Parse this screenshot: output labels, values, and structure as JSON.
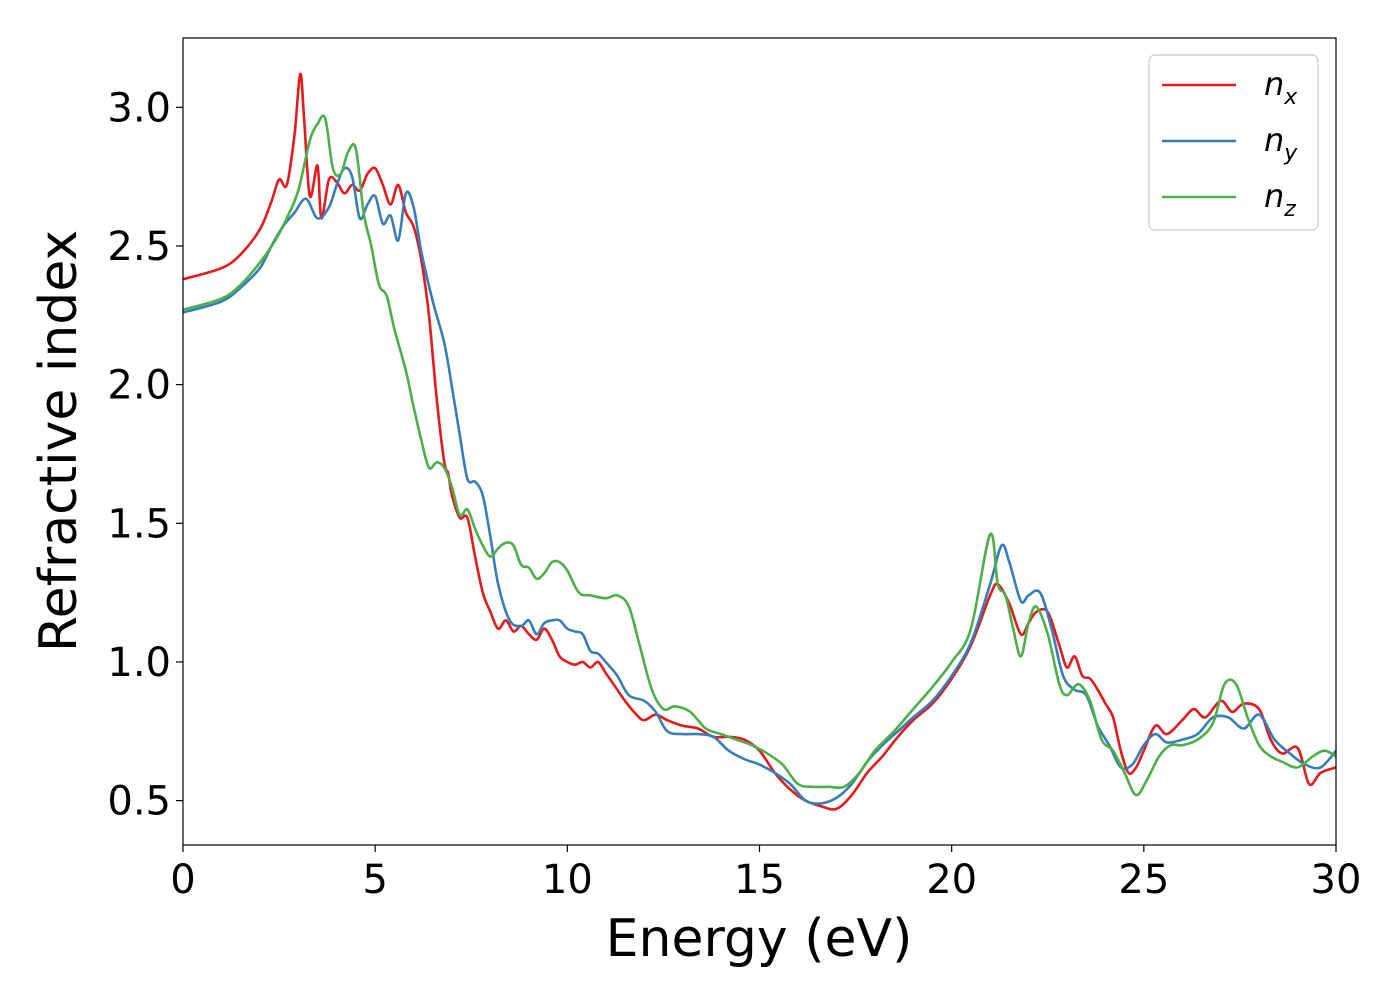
{
  "chart_data": {
    "type": "line",
    "xlabel": "Energy (eV)",
    "ylabel": "Refractive index",
    "xlim": [
      0,
      30
    ],
    "ylim": [
      0.34,
      3.25
    ],
    "xticks": [
      0,
      5,
      10,
      15,
      20,
      25,
      30
    ],
    "xtick_labels": [
      "0",
      "5",
      "10",
      "15",
      "20",
      "25",
      "30"
    ],
    "yticks": [
      0.5,
      1.0,
      1.5,
      2.0,
      2.5,
      3.0
    ],
    "ytick_labels": [
      "0.5",
      "1.0",
      "1.5",
      "2.0",
      "2.5",
      "3.0"
    ],
    "grid": false,
    "legend_position": "top-right",
    "series": [
      {
        "name": "n",
        "subscript": "x",
        "color": "#e41a1c",
        "x": [
          0,
          1,
          1.5,
          2,
          2.3,
          2.5,
          2.7,
          2.9,
          3.05,
          3.15,
          3.3,
          3.5,
          3.6,
          3.8,
          4.0,
          4.2,
          4.4,
          4.6,
          4.8,
          5.0,
          5.2,
          5.4,
          5.6,
          5.8,
          6.0,
          6.2,
          6.4,
          6.6,
          6.8,
          6.9,
          7.0,
          7.2,
          7.4,
          7.6,
          7.8,
          8.0,
          8.2,
          8.4,
          8.6,
          8.8,
          9.0,
          9.2,
          9.4,
          9.6,
          9.8,
          10.0,
          10.2,
          10.4,
          10.6,
          10.8,
          11.0,
          11.2,
          11.5,
          11.8,
          12.0,
          12.3,
          12.6,
          13.0,
          13.4,
          13.8,
          14.2,
          14.6,
          15.0,
          15.4,
          15.8,
          16.2,
          16.6,
          17.0,
          17.4,
          17.8,
          18.2,
          18.6,
          19.0,
          19.5,
          20.0,
          20.5,
          21.0,
          21.2,
          21.5,
          21.8,
          22.0,
          22.2,
          22.5,
          22.8,
          23.0,
          23.2,
          23.4,
          23.6,
          23.8,
          24.0,
          24.2,
          24.4,
          24.6,
          24.8,
          25.0,
          25.3,
          25.6,
          26.0,
          26.3,
          26.6,
          27.0,
          27.3,
          27.6,
          28.0,
          28.3,
          28.6,
          29.0,
          29.3,
          29.6,
          30.0
        ],
        "y": [
          2.38,
          2.42,
          2.47,
          2.56,
          2.66,
          2.74,
          2.72,
          2.9,
          3.12,
          2.96,
          2.68,
          2.79,
          2.6,
          2.74,
          2.73,
          2.69,
          2.72,
          2.7,
          2.76,
          2.78,
          2.72,
          2.65,
          2.72,
          2.62,
          2.57,
          2.45,
          2.25,
          1.95,
          1.72,
          1.68,
          1.6,
          1.52,
          1.52,
          1.38,
          1.25,
          1.18,
          1.12,
          1.15,
          1.11,
          1.13,
          1.1,
          1.08,
          1.12,
          1.08,
          1.02,
          1.0,
          0.99,
          1.0,
          0.98,
          1.0,
          0.96,
          0.92,
          0.86,
          0.81,
          0.79,
          0.81,
          0.79,
          0.77,
          0.76,
          0.73,
          0.73,
          0.72,
          0.68,
          0.6,
          0.54,
          0.5,
          0.48,
          0.47,
          0.52,
          0.6,
          0.66,
          0.73,
          0.79,
          0.85,
          0.94,
          1.06,
          1.24,
          1.28,
          1.21,
          1.1,
          1.14,
          1.18,
          1.18,
          1.06,
          0.98,
          1.02,
          0.95,
          0.94,
          0.9,
          0.85,
          0.8,
          0.68,
          0.6,
          0.62,
          0.68,
          0.77,
          0.74,
          0.79,
          0.83,
          0.8,
          0.86,
          0.82,
          0.85,
          0.83,
          0.72,
          0.67,
          0.69,
          0.56,
          0.6,
          0.62
        ]
      },
      {
        "name": "n",
        "subscript": "y",
        "color": "#377eb8",
        "x": [
          0,
          1,
          1.5,
          2,
          2.3,
          2.6,
          2.9,
          3.2,
          3.5,
          3.8,
          4.0,
          4.2,
          4.4,
          4.6,
          4.8,
          5.0,
          5.2,
          5.4,
          5.6,
          5.8,
          6.0,
          6.2,
          6.5,
          6.8,
          7.0,
          7.2,
          7.4,
          7.6,
          7.8,
          8.0,
          8.2,
          8.5,
          8.8,
          9.0,
          9.2,
          9.4,
          9.6,
          9.8,
          10.0,
          10.2,
          10.4,
          10.6,
          10.8,
          11.0,
          11.3,
          11.6,
          12.0,
          12.3,
          12.6,
          13.0,
          13.4,
          13.8,
          14.2,
          14.6,
          15.0,
          15.4,
          15.8,
          16.2,
          16.6,
          17.0,
          17.4,
          17.8,
          18.2,
          18.6,
          19.0,
          19.5,
          20.0,
          20.5,
          21.0,
          21.3,
          21.5,
          21.8,
          22.0,
          22.3,
          22.6,
          22.9,
          23.2,
          23.5,
          23.8,
          24.1,
          24.4,
          24.7,
          25.0,
          25.3,
          25.6,
          26.0,
          26.4,
          26.8,
          27.2,
          27.6,
          28.0,
          28.4,
          28.8,
          29.2,
          29.6,
          30.0
        ],
        "y": [
          2.26,
          2.3,
          2.35,
          2.42,
          2.5,
          2.57,
          2.62,
          2.67,
          2.6,
          2.64,
          2.72,
          2.78,
          2.75,
          2.6,
          2.65,
          2.68,
          2.58,
          2.61,
          2.52,
          2.69,
          2.64,
          2.48,
          2.3,
          2.15,
          1.99,
          1.82,
          1.66,
          1.65,
          1.6,
          1.45,
          1.28,
          1.15,
          1.13,
          1.15,
          1.1,
          1.14,
          1.15,
          1.15,
          1.12,
          1.11,
          1.1,
          1.04,
          1.03,
          1.0,
          0.95,
          0.88,
          0.86,
          0.82,
          0.75,
          0.74,
          0.74,
          0.73,
          0.68,
          0.65,
          0.63,
          0.6,
          0.56,
          0.5,
          0.49,
          0.51,
          0.56,
          0.64,
          0.7,
          0.75,
          0.8,
          0.86,
          0.95,
          1.07,
          1.28,
          1.42,
          1.36,
          1.22,
          1.24,
          1.25,
          1.12,
          0.95,
          0.9,
          0.88,
          0.77,
          0.7,
          0.62,
          0.63,
          0.7,
          0.74,
          0.71,
          0.72,
          0.74,
          0.8,
          0.8,
          0.76,
          0.81,
          0.72,
          0.67,
          0.63,
          0.62,
          0.68
        ]
      },
      {
        "name": "n",
        "subscript": "z",
        "color": "#4daf4a",
        "x": [
          0,
          1,
          1.5,
          2,
          2.4,
          2.7,
          3.0,
          3.3,
          3.5,
          3.7,
          3.9,
          4.1,
          4.3,
          4.5,
          4.7,
          4.9,
          5.1,
          5.3,
          5.5,
          5.8,
          6.0,
          6.2,
          6.4,
          6.6,
          6.8,
          7.0,
          7.2,
          7.4,
          7.6,
          7.8,
          8.0,
          8.2,
          8.4,
          8.6,
          8.8,
          9.0,
          9.2,
          9.4,
          9.6,
          9.8,
          10.0,
          10.3,
          10.6,
          11.0,
          11.3,
          11.6,
          11.9,
          12.2,
          12.5,
          12.8,
          13.2,
          13.6,
          14.0,
          14.4,
          14.8,
          15.2,
          15.6,
          16.0,
          16.4,
          16.8,
          17.2,
          17.6,
          18.0,
          18.5,
          19.0,
          19.5,
          20.0,
          20.5,
          21.0,
          21.2,
          21.4,
          21.6,
          21.8,
          22.0,
          22.2,
          22.5,
          22.8,
          23.0,
          23.3,
          23.6,
          23.9,
          24.2,
          24.5,
          24.8,
          25.1,
          25.4,
          25.7,
          26.0,
          26.4,
          26.8,
          27.1,
          27.4,
          27.7,
          28.0,
          28.3,
          28.6,
          29.0,
          29.4,
          29.7,
          30.0
        ],
        "y": [
          2.27,
          2.31,
          2.36,
          2.44,
          2.52,
          2.6,
          2.7,
          2.88,
          2.94,
          2.96,
          2.78,
          2.76,
          2.84,
          2.85,
          2.62,
          2.5,
          2.36,
          2.32,
          2.2,
          2.05,
          1.92,
          1.8,
          1.7,
          1.72,
          1.7,
          1.63,
          1.53,
          1.55,
          1.48,
          1.42,
          1.38,
          1.41,
          1.43,
          1.42,
          1.35,
          1.34,
          1.3,
          1.32,
          1.36,
          1.36,
          1.33,
          1.25,
          1.24,
          1.23,
          1.24,
          1.2,
          1.05,
          0.9,
          0.83,
          0.84,
          0.82,
          0.76,
          0.74,
          0.72,
          0.7,
          0.67,
          0.63,
          0.56,
          0.55,
          0.55,
          0.55,
          0.6,
          0.68,
          0.75,
          0.83,
          0.91,
          1.0,
          1.12,
          1.46,
          1.28,
          1.24,
          1.12,
          1.02,
          1.14,
          1.2,
          1.1,
          0.92,
          0.88,
          0.92,
          0.86,
          0.72,
          0.68,
          0.6,
          0.52,
          0.58,
          0.66,
          0.7,
          0.7,
          0.72,
          0.78,
          0.92,
          0.92,
          0.8,
          0.7,
          0.66,
          0.64,
          0.62,
          0.66,
          0.68,
          0.66
        ]
      }
    ]
  }
}
